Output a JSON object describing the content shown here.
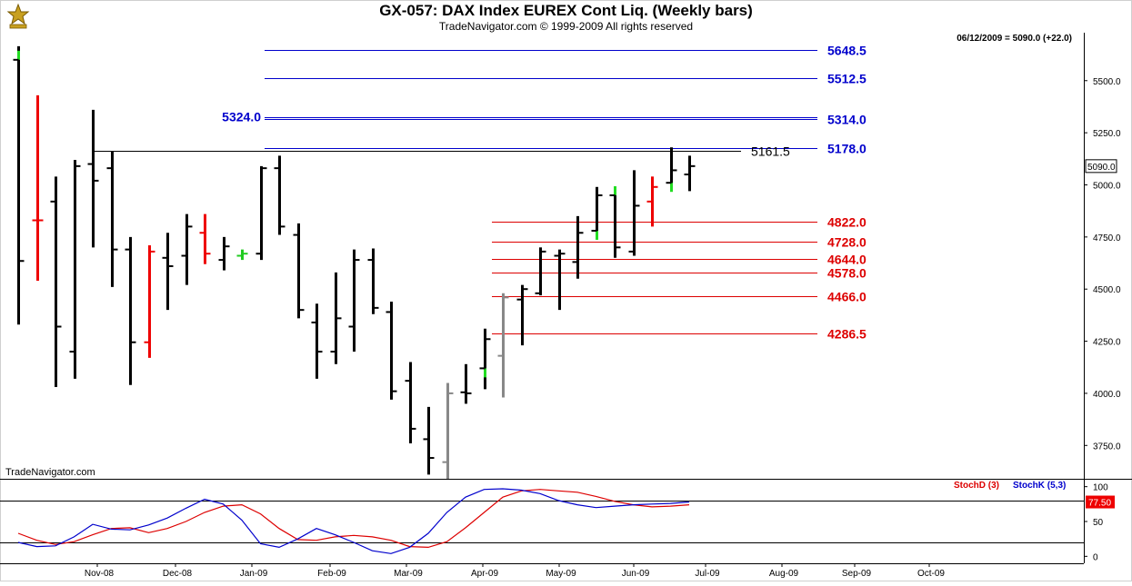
{
  "header": {
    "title": "GX-057:  DAX Index EUREX Cont Liq.  (Weekly bars)",
    "subtitle": "TradeNavigator.com © 1999-2009 All rights reserved",
    "last_info": "06/12/2009 = 5090.0 (+22.0)",
    "watermark": "TradeNavigator.com"
  },
  "chart_data": [
    {
      "type": "ohlc",
      "name": "price",
      "x_ticks": [
        "Nov-08",
        "Dec-08",
        "Jan-09",
        "Feb-09",
        "Mar-09",
        "Apr-09",
        "May-09",
        "Jun-09",
        "Jul-09",
        "Aug-09",
        "Sep-09",
        "Oct-09"
      ],
      "y_ticks": [
        3750.0,
        4000.0,
        4250.0,
        4500.0,
        4750.0,
        5000.0,
        5250.0,
        5500.0
      ],
      "ylim": [
        3590,
        5730
      ],
      "last_price_label": "5090.0",
      "bars": [
        {
          "h": 5665,
          "l": 4330,
          "o": 5600,
          "c": 4635,
          "color": "green_black"
        },
        {
          "h": 5430,
          "l": 4540,
          "o": 4830,
          "c": 4830,
          "color": "red"
        },
        {
          "h": 5040,
          "l": 4030,
          "o": 4920,
          "c": 4320,
          "color": "black"
        },
        {
          "h": 5120,
          "l": 4070,
          "o": 4200,
          "c": 5090,
          "color": "black"
        },
        {
          "h": 5360,
          "l": 4700,
          "o": 5100,
          "c": 5020,
          "color": "black"
        },
        {
          "h": 5160,
          "l": 4510,
          "o": 5080,
          "c": 4690,
          "color": "black"
        },
        {
          "h": 4750,
          "l": 4040,
          "o": 4690,
          "c": 4245,
          "color": "black"
        },
        {
          "h": 4710,
          "l": 4170,
          "o": 4245,
          "c": 4680,
          "color": "red"
        },
        {
          "h": 4770,
          "l": 4400,
          "o": 4650,
          "c": 4610,
          "color": "black"
        },
        {
          "h": 4860,
          "l": 4520,
          "o": 4660,
          "c": 4800,
          "color": "black"
        },
        {
          "h": 4860,
          "l": 4620,
          "o": 4770,
          "c": 4670,
          "color": "red"
        },
        {
          "h": 4750,
          "l": 4590,
          "o": 4640,
          "c": 4705,
          "color": "black"
        },
        {
          "h": 4690,
          "l": 4640,
          "o": 4660,
          "c": 4670,
          "color": "green"
        },
        {
          "h": 5090,
          "l": 4640,
          "o": 4670,
          "c": 5080,
          "color": "black"
        },
        {
          "h": 5140,
          "l": 4760,
          "o": 5080,
          "c": 4800,
          "color": "black"
        },
        {
          "h": 4815,
          "l": 4360,
          "o": 4760,
          "c": 4400,
          "color": "black"
        },
        {
          "h": 4430,
          "l": 4070,
          "o": 4340,
          "c": 4200,
          "color": "black"
        },
        {
          "h": 4580,
          "l": 4140,
          "o": 4200,
          "c": 4360,
          "color": "black"
        },
        {
          "h": 4690,
          "l": 4200,
          "o": 4320,
          "c": 4640,
          "color": "black"
        },
        {
          "h": 4695,
          "l": 4380,
          "o": 4640,
          "c": 4410,
          "color": "black"
        },
        {
          "h": 4440,
          "l": 3970,
          "o": 4390,
          "c": 4010,
          "color": "black"
        },
        {
          "h": 4150,
          "l": 3760,
          "o": 4060,
          "c": 3830,
          "color": "black"
        },
        {
          "h": 3935,
          "l": 3610,
          "o": 3780,
          "c": 3690,
          "color": "black"
        },
        {
          "h": 4050,
          "l": 3590,
          "o": 3670,
          "c": 4000,
          "color": "gray"
        },
        {
          "h": 4140,
          "l": 3950,
          "o": 4005,
          "c": 4000,
          "color": "black"
        },
        {
          "h": 4310,
          "l": 4020,
          "o": 4120,
          "c": 4260,
          "color": "green_black"
        },
        {
          "h": 4480,
          "l": 3980,
          "o": 4180,
          "c": 4460,
          "color": "gray"
        },
        {
          "h": 4520,
          "l": 4230,
          "o": 4450,
          "c": 4500,
          "color": "black"
        },
        {
          "h": 4700,
          "l": 4470,
          "o": 4480,
          "c": 4680,
          "color": "black"
        },
        {
          "h": 4690,
          "l": 4400,
          "o": 4660,
          "c": 4670,
          "color": "black"
        },
        {
          "h": 4850,
          "l": 4550,
          "o": 4630,
          "c": 4770,
          "color": "black"
        },
        {
          "h": 4990,
          "l": 4750,
          "o": 4780,
          "c": 4950,
          "color": "green_black"
        },
        {
          "h": 4960,
          "l": 4650,
          "o": 4950,
          "c": 4700,
          "color": "green_black"
        },
        {
          "h": 5070,
          "l": 4660,
          "o": 4680,
          "c": 4900,
          "color": "black"
        },
        {
          "h": 5040,
          "l": 4800,
          "o": 4920,
          "c": 4990,
          "color": "red"
        },
        {
          "h": 5180,
          "l": 4990,
          "o": 5010,
          "c": 5070,
          "color": "green_black"
        },
        {
          "h": 5140,
          "l": 4970,
          "o": 5050,
          "c": 5090,
          "color": "black"
        }
      ],
      "levels": [
        {
          "value": 5648.5,
          "label": "5648.5",
          "color": "#0000cc",
          "start": "Jan-09",
          "label_side": "right"
        },
        {
          "value": 5512.5,
          "label": "5512.5",
          "color": "#0000cc",
          "start": "Jan-09",
          "label_side": "right"
        },
        {
          "value": 5324.0,
          "label": "5324.0",
          "color": "#0000cc",
          "start": "Jan-09",
          "label_side": "left"
        },
        {
          "value": 5314.0,
          "label": "5314.0",
          "color": "#0000cc",
          "start": "Jan-09",
          "label_side": "right"
        },
        {
          "value": 5178.0,
          "label": "5178.0",
          "color": "#0000cc",
          "start": "Jan-09",
          "label_side": "right"
        },
        {
          "value": 5161.5,
          "label": "5161.5",
          "color": "#000000",
          "start": "Nov-08",
          "label_side": "right"
        },
        {
          "value": 4822.0,
          "label": "4822.0",
          "color": "#dd0000",
          "start": "Apr-09",
          "label_side": "right"
        },
        {
          "value": 4728.0,
          "label": "4728.0",
          "color": "#dd0000",
          "start": "Apr-09",
          "label_side": "right"
        },
        {
          "value": 4644.0,
          "label": "4644.0",
          "color": "#dd0000",
          "start": "Apr-09",
          "label_side": "right"
        },
        {
          "value": 4578.0,
          "label": "4578.0",
          "color": "#dd0000",
          "start": "Apr-09",
          "label_side": "right"
        },
        {
          "value": 4466.0,
          "label": "4466.0",
          "color": "#dd0000",
          "start": "Apr-09",
          "label_side": "right"
        },
        {
          "value": 4286.5,
          "label": "4286.5",
          "color": "#dd0000",
          "start": "Apr-09",
          "label_side": "right"
        }
      ]
    },
    {
      "type": "line",
      "name": "stochastics",
      "ylim": [
        -10,
        110
      ],
      "y_ticks": [
        0,
        50,
        100
      ],
      "ref_lines": [
        20,
        80
      ],
      "last_value_label": "77.50",
      "series": [
        {
          "name": "StochD (3)",
          "color": "#dd0000",
          "values": [
            33,
            23,
            17,
            21,
            31,
            40,
            41,
            34,
            40,
            50,
            63,
            72,
            74,
            61,
            40,
            24,
            23,
            28,
            30,
            28,
            23,
            14,
            13,
            21,
            41,
            63,
            85,
            94,
            96,
            94,
            92,
            86,
            79,
            74,
            71,
            72,
            74
          ]
        },
        {
          "name": "StochK (5,3)",
          "color": "#0000cc",
          "values": [
            20,
            14,
            15,
            28,
            46,
            39,
            38,
            45,
            55,
            69,
            82,
            75,
            52,
            18,
            13,
            25,
            40,
            31,
            20,
            8,
            4,
            13,
            33,
            63,
            85,
            96,
            97,
            95,
            90,
            80,
            74,
            70,
            72,
            74,
            75,
            76,
            78
          ]
        }
      ]
    }
  ]
}
